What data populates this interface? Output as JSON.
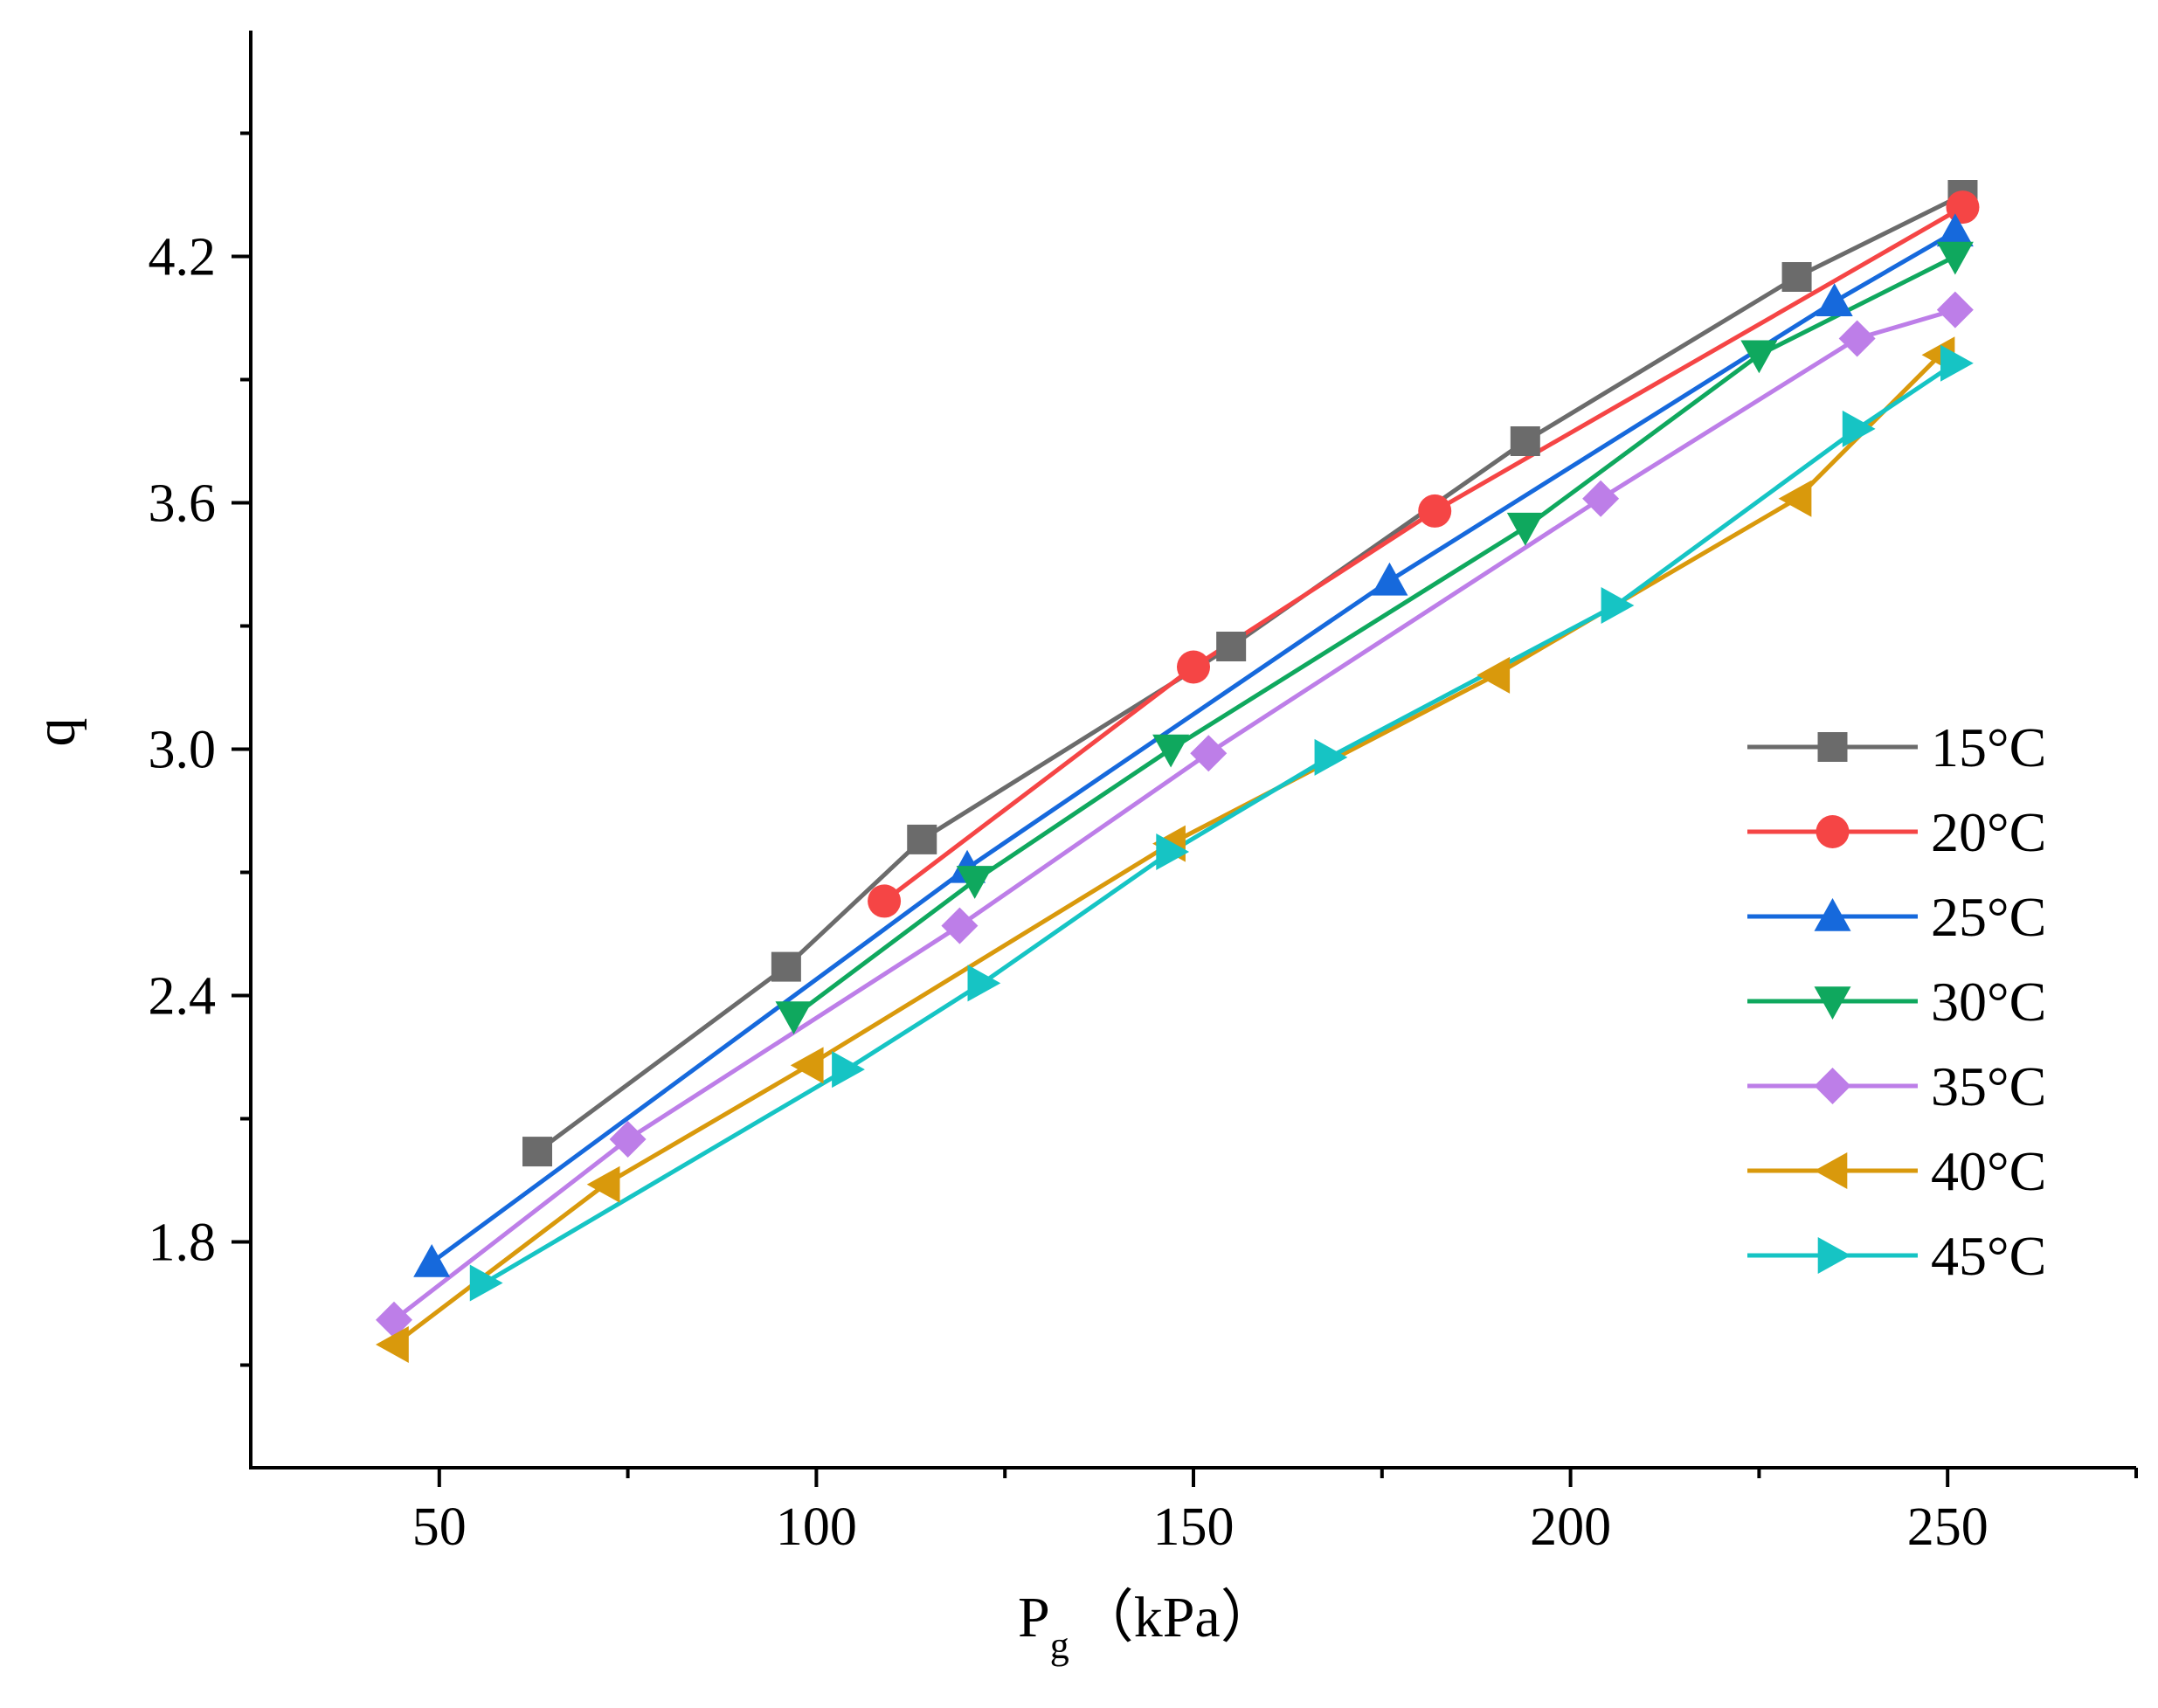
{
  "chart_data": {
    "type": "line",
    "title": "",
    "xlabel": {
      "main": "P",
      "sub": "g",
      "unit": "（kPa）"
    },
    "ylabel": "q",
    "xlim": [
      25,
      275
    ],
    "ylim": [
      1.25,
      4.75
    ],
    "xticks": [
      50,
      100,
      150,
      200,
      250
    ],
    "xtick_labels": [
      "50",
      "100",
      "150",
      "200",
      "250"
    ],
    "yticks": [
      1.8,
      2.4,
      3.0,
      3.6,
      4.2
    ],
    "ytick_labels": [
      "1.8",
      "2.4",
      "3.0",
      "3.6",
      "4.2"
    ],
    "grid": false,
    "legend_position": "right",
    "series": [
      {
        "name": "15°C",
        "color": "#6b6b6b",
        "marker": "square",
        "x": [
          63,
          96,
          114,
          155,
          194,
          230,
          252
        ],
        "y": [
          2.02,
          2.47,
          2.78,
          3.25,
          3.75,
          4.15,
          4.35
        ]
      },
      {
        "name": "20°C",
        "color": "#f54545",
        "marker": "circle",
        "x": [
          109,
          150,
          182,
          252
        ],
        "y": [
          2.63,
          3.2,
          3.58,
          4.32
        ]
      },
      {
        "name": "25°C",
        "color": "#1669dc",
        "marker": "triangle-up",
        "x": [
          49,
          120,
          176,
          235,
          251
        ],
        "y": [
          1.75,
          2.71,
          3.41,
          4.09,
          4.26
        ]
      },
      {
        "name": "30°C",
        "color": "#0fa85e",
        "marker": "triangle-down",
        "x": [
          97,
          121,
          147,
          194,
          225,
          251
        ],
        "y": [
          2.35,
          2.68,
          3.0,
          3.54,
          3.96,
          4.2
        ]
      },
      {
        "name": "35°C",
        "color": "#bd7ee8",
        "marker": "diamond",
        "x": [
          44,
          75,
          119,
          152,
          204,
          238,
          251
        ],
        "y": [
          1.61,
          2.05,
          2.57,
          2.99,
          3.61,
          4.0,
          4.07
        ]
      },
      {
        "name": "40°C",
        "color": "#d9990c",
        "marker": "triangle-left",
        "x": [
          44,
          72,
          99,
          147,
          190,
          230,
          249
        ],
        "y": [
          1.55,
          1.94,
          2.23,
          2.77,
          3.18,
          3.61,
          3.96
        ]
      },
      {
        "name": "45°C",
        "color": "#16c4c4",
        "marker": "triangle-right",
        "x": [
          56,
          104,
          122,
          147,
          168,
          206,
          238,
          251
        ],
        "y": [
          1.7,
          2.22,
          2.43,
          2.75,
          2.98,
          3.35,
          3.78,
          3.94
        ]
      }
    ]
  }
}
